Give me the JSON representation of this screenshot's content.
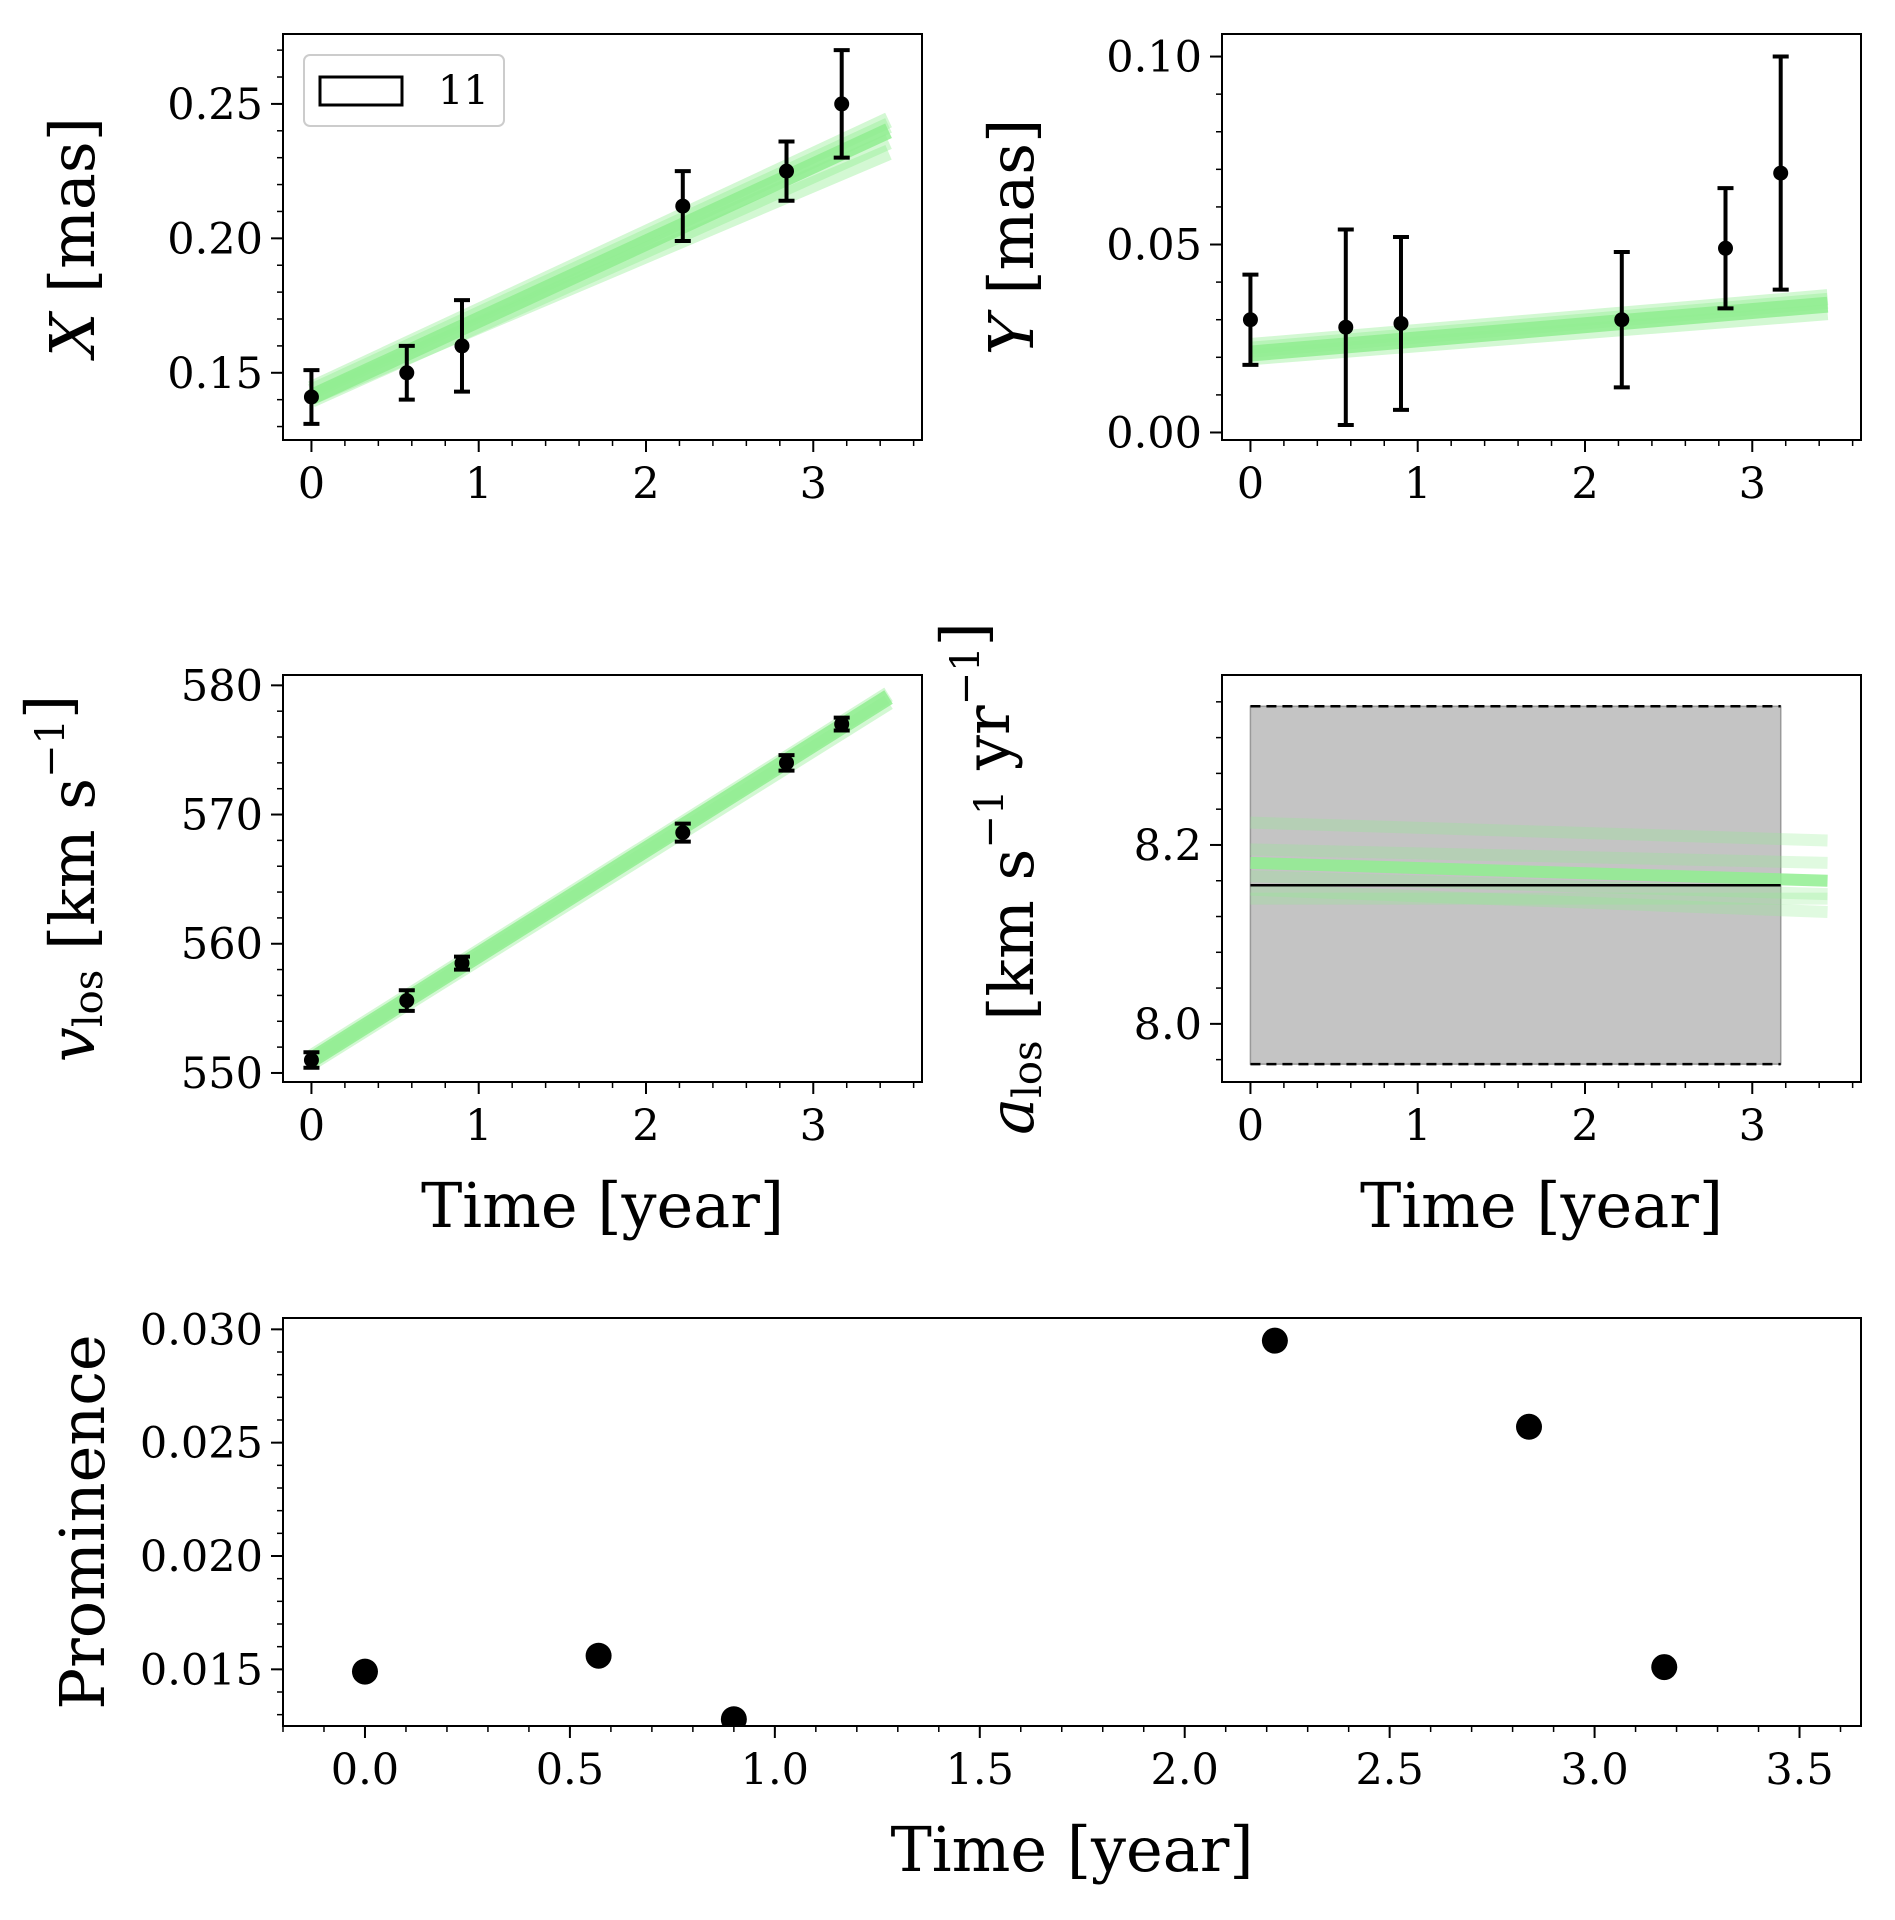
{
  "figure": {
    "colors": {
      "fit": "#90ee90",
      "data": "#000000",
      "band": "#c4c4c4"
    }
  },
  "chart_data": [
    {
      "id": "x_panel",
      "type": "scatter",
      "subtype": "errorbar-with-fit-bundle",
      "xlabel": "",
      "ylabel": "X [mas]",
      "xlim": [
        -0.17,
        3.65
      ],
      "ylim": [
        0.125,
        0.276
      ],
      "xticks": [
        0,
        1,
        2,
        3
      ],
      "xtick_labels": [
        "0",
        "1",
        "2",
        "3"
      ],
      "yticks": [
        0.15,
        0.2,
        0.25
      ],
      "ytick_labels": [
        "0.15",
        "0.20",
        "0.25"
      ],
      "legend": {
        "entries": [
          "11"
        ],
        "position": "upper-left"
      },
      "points": {
        "x": [
          0.0,
          0.57,
          0.9,
          2.22,
          2.84,
          3.17
        ],
        "y": [
          0.141,
          0.15,
          0.16,
          0.212,
          0.225,
          0.25
        ],
        "yerr": [
          0.01,
          0.01,
          0.017,
          0.013,
          0.011,
          0.02
        ]
      },
      "fit_lines": [
        {
          "x": [
            0,
            3.45
          ],
          "y": [
            0.141,
            0.24
          ]
        },
        {
          "x": [
            0,
            3.45
          ],
          "y": [
            0.143,
            0.242
          ]
        },
        {
          "x": [
            0,
            3.45
          ],
          "y": [
            0.14,
            0.236
          ]
        },
        {
          "x": [
            0,
            3.45
          ],
          "y": [
            0.144,
            0.244
          ]
        },
        {
          "x": [
            0,
            3.45
          ],
          "y": [
            0.141,
            0.232
          ]
        }
      ]
    },
    {
      "id": "y_panel",
      "type": "scatter",
      "subtype": "errorbar-with-fit-bundle",
      "xlabel": "",
      "ylabel": "Y [mas]",
      "xlim": [
        -0.17,
        3.65
      ],
      "ylim": [
        -0.002,
        0.106
      ],
      "xticks": [
        0,
        1,
        2,
        3
      ],
      "xtick_labels": [
        "0",
        "1",
        "2",
        "3"
      ],
      "yticks": [
        0.0,
        0.05,
        0.1
      ],
      "ytick_labels": [
        "0.00",
        "0.05",
        "0.10"
      ],
      "points": {
        "x": [
          0.0,
          0.57,
          0.9,
          2.22,
          2.84,
          3.17
        ],
        "y": [
          0.03,
          0.028,
          0.029,
          0.03,
          0.049,
          0.069
        ],
        "yerr": [
          0.012,
          0.026,
          0.023,
          0.018,
          0.016,
          0.031
        ]
      },
      "fit_lines": [
        {
          "x": [
            0,
            3.45
          ],
          "y": [
            0.021,
            0.034
          ]
        },
        {
          "x": [
            0,
            3.45
          ],
          "y": [
            0.022,
            0.035
          ]
        },
        {
          "x": [
            0,
            3.45
          ],
          "y": [
            0.02,
            0.032
          ]
        },
        {
          "x": [
            0,
            3.45
          ],
          "y": [
            0.023,
            0.036
          ]
        }
      ]
    },
    {
      "id": "vlos_panel",
      "type": "scatter",
      "subtype": "errorbar-with-fit-bundle",
      "xlabel": "Time [year]",
      "ylabel": "v_los [km s^-1]",
      "xlim": [
        -0.17,
        3.65
      ],
      "ylim": [
        549.3,
        580.8
      ],
      "xticks": [
        0,
        1,
        2,
        3
      ],
      "xtick_labels": [
        "0",
        "1",
        "2",
        "3"
      ],
      "yticks": [
        550,
        560,
        570,
        580
      ],
      "ytick_labels": [
        "550",
        "560",
        "570",
        "580"
      ],
      "points": {
        "x": [
          0.0,
          0.57,
          0.9,
          2.22,
          2.84,
          3.17
        ],
        "y": [
          551.0,
          555.6,
          558.5,
          568.6,
          574.0,
          577.0
        ],
        "yerr": [
          0.6,
          0.8,
          0.5,
          0.7,
          0.6,
          0.5
        ]
      },
      "fit_lines": [
        {
          "x": [
            0,
            3.45
          ],
          "y": [
            551.0,
            579.1
          ]
        },
        {
          "x": [
            0,
            3.45
          ],
          "y": [
            550.8,
            578.7
          ]
        },
        {
          "x": [
            0,
            3.45
          ],
          "y": [
            551.2,
            579.3
          ]
        }
      ]
    },
    {
      "id": "alos_panel",
      "type": "line",
      "subtype": "band-with-fit-bundle",
      "xlabel": "Time [year]",
      "ylabel": "a_los [km s^-1 yr^-1]",
      "xlim": [
        -0.17,
        3.65
      ],
      "ylim": [
        7.935,
        8.39
      ],
      "xticks": [
        0,
        1,
        2,
        3
      ],
      "xtick_labels": [
        "0",
        "1",
        "2",
        "3"
      ],
      "yticks": [
        8.0,
        8.2
      ],
      "ytick_labels": [
        "8.0",
        "8.2"
      ],
      "band": {
        "x": [
          0,
          3.17
        ],
        "lower": 7.955,
        "upper": 8.355,
        "center": 8.155
      },
      "fit_lines": [
        {
          "x": [
            0,
            3.45
          ],
          "y": [
            8.18,
            8.16
          ]
        },
        {
          "x": [
            0,
            3.45
          ],
          "y": [
            8.15,
            8.125
          ]
        },
        {
          "x": [
            0,
            3.45
          ],
          "y": [
            8.165,
            8.145
          ]
        },
        {
          "x": [
            0,
            3.45
          ],
          "y": [
            8.225,
            8.205
          ]
        },
        {
          "x": [
            0,
            3.45
          ],
          "y": [
            8.14,
            8.14
          ]
        },
        {
          "x": [
            0,
            3.45
          ],
          "y": [
            8.195,
            8.18
          ]
        }
      ]
    },
    {
      "id": "prominence_panel",
      "type": "scatter",
      "xlabel": "Time [year]",
      "ylabel": "Prominence",
      "xlim": [
        -0.2,
        3.65
      ],
      "ylim": [
        0.0125,
        0.0305
      ],
      "xticks": [
        0.0,
        0.5,
        1.0,
        1.5,
        2.0,
        2.5,
        3.0,
        3.5
      ],
      "xtick_labels": [
        "0.0",
        "0.5",
        "1.0",
        "1.5",
        "2.0",
        "2.5",
        "3.0",
        "3.5"
      ],
      "yticks": [
        0.015,
        0.02,
        0.025,
        0.03
      ],
      "ytick_labels": [
        "0.015",
        "0.020",
        "0.025",
        "0.030"
      ],
      "points": {
        "x": [
          0.0,
          0.57,
          0.9,
          2.22,
          2.84,
          3.17
        ],
        "y": [
          0.0149,
          0.0156,
          0.0128,
          0.0295,
          0.0257,
          0.0151
        ]
      }
    }
  ]
}
